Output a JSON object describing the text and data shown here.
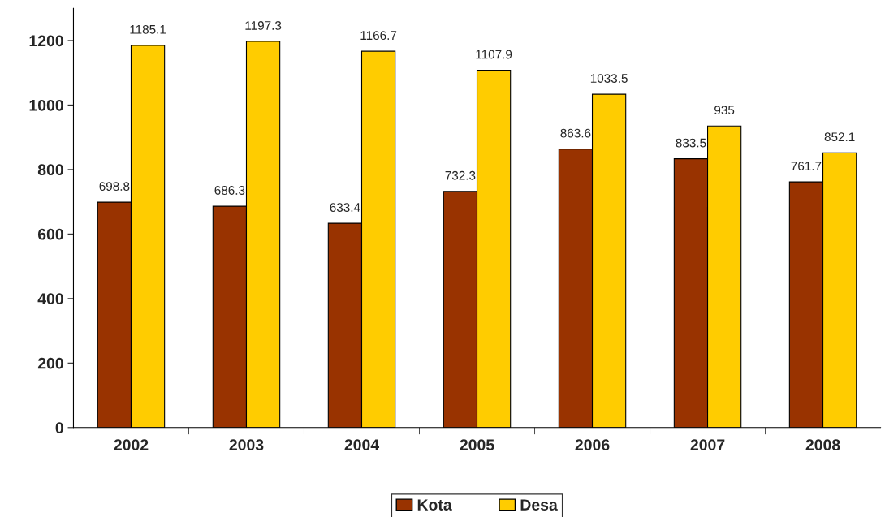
{
  "chart_data": {
    "type": "bar",
    "categories": [
      "2002",
      "2003",
      "2004",
      "2005",
      "2006",
      "2007",
      "2008"
    ],
    "series": [
      {
        "name": "Kota",
        "color": "#993300",
        "values": [
          698.8,
          686.3,
          633.4,
          732.3,
          863.6,
          833.5,
          761.7
        ]
      },
      {
        "name": "Desa",
        "color": "#ffcc00",
        "values": [
          1185.1,
          1197.3,
          1166.7,
          1107.9,
          1033.5,
          935,
          852.1
        ]
      }
    ],
    "ylim": [
      0,
      1300
    ],
    "yticks": [
      0,
      200,
      400,
      600,
      800,
      1000,
      1200
    ],
    "grid": false,
    "legend": "bottom",
    "data_labels": true
  }
}
